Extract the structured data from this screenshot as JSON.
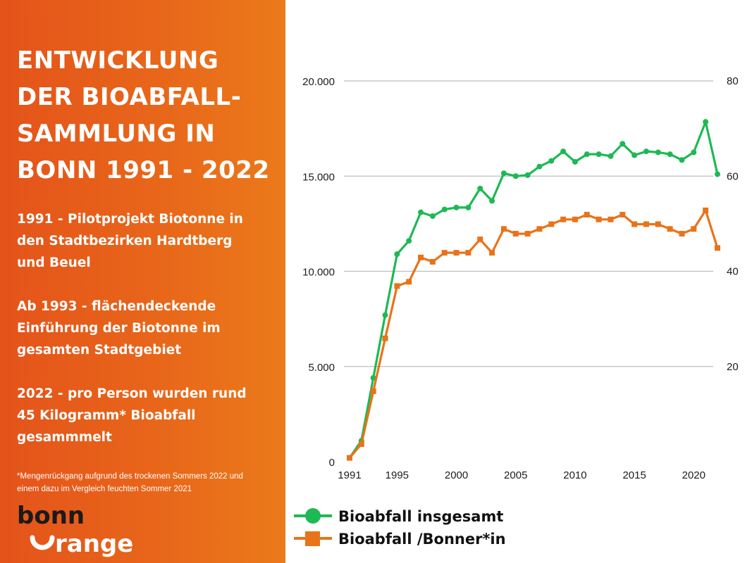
{
  "sidebar": {
    "title_lines": [
      "ENTWICKLUNG",
      "DER BIOABFALL-",
      "SAMMLUNG IN",
      "BONN 1991 - 2022"
    ],
    "paragraphs": [
      [
        "1991 - Pilotprojekt Biotonne in",
        "den Stadtbezirken Hardtberg",
        "und Beuel"
      ],
      [
        "Ab 1993 - flächendeckende",
        "Einführung der Biotonne im",
        "gesamten Stadtgebiet"
      ],
      [
        "2022 - pro Person wurden rund",
        "45 Kilogramm* Bioabfall",
        "gesammmelt"
      ]
    ],
    "footnote_lines": [
      "*Mengenrückgang aufgrund des trockenen Sommers 2022 und",
      "einem dazu im Vergleich feuchten Sommer 2021"
    ],
    "logo": {
      "line1": "bonn",
      "line2": "range"
    }
  },
  "colors": {
    "sidebar_bg": "#e8661a",
    "green": "#1db954",
    "orange": "#e8731a",
    "grid": "#bdbdbd"
  },
  "chart_data": {
    "type": "line",
    "x": [
      1991,
      1992,
      1993,
      1994,
      1995,
      1996,
      1997,
      1998,
      1999,
      2000,
      2001,
      2002,
      2003,
      2004,
      2005,
      2006,
      2007,
      2008,
      2009,
      2010,
      2011,
      2012,
      2013,
      2014,
      2015,
      2016,
      2017,
      2018,
      2019,
      2020,
      2021,
      2022
    ],
    "xticks": [
      "1991",
      "1995",
      "2000",
      "2005",
      "2010",
      "2015",
      "2020"
    ],
    "y_left_ticks": [
      "0",
      "5.000",
      "10.000",
      "15.000",
      "20.000"
    ],
    "y_right_ticks": [
      "20",
      "40",
      "60",
      "80"
    ],
    "ylim_left": [
      0,
      20000
    ],
    "ylim_right": [
      0,
      80
    ],
    "grid": true,
    "legend_position": "bottom",
    "series": [
      {
        "name": "Bioabfall insgesamt",
        "axis": "left",
        "marker": "circle",
        "color": "#1db954",
        "values": [
          200,
          1100,
          4400,
          7700,
          10900,
          11600,
          13100,
          12900,
          13250,
          13350,
          13350,
          14350,
          13700,
          15150,
          15000,
          15050,
          15500,
          15800,
          16300,
          15750,
          16150,
          16150,
          16050,
          16700,
          16100,
          16300,
          16250,
          16150,
          15850,
          16250,
          17850,
          15100
        ]
      },
      {
        "name": "Bioabfall /Bonner*in",
        "axis": "right",
        "marker": "square",
        "color": "#e8731a",
        "values": [
          0.8,
          3.7,
          14.8,
          25.9,
          36.9,
          37.8,
          42.9,
          42.0,
          43.9,
          43.9,
          43.9,
          46.7,
          43.9,
          48.9,
          47.9,
          47.9,
          48.9,
          49.9,
          50.9,
          50.9,
          51.9,
          50.9,
          50.9,
          51.9,
          49.9,
          49.9,
          49.9,
          48.9,
          47.9,
          48.9,
          52.8,
          44.9
        ]
      }
    ]
  }
}
